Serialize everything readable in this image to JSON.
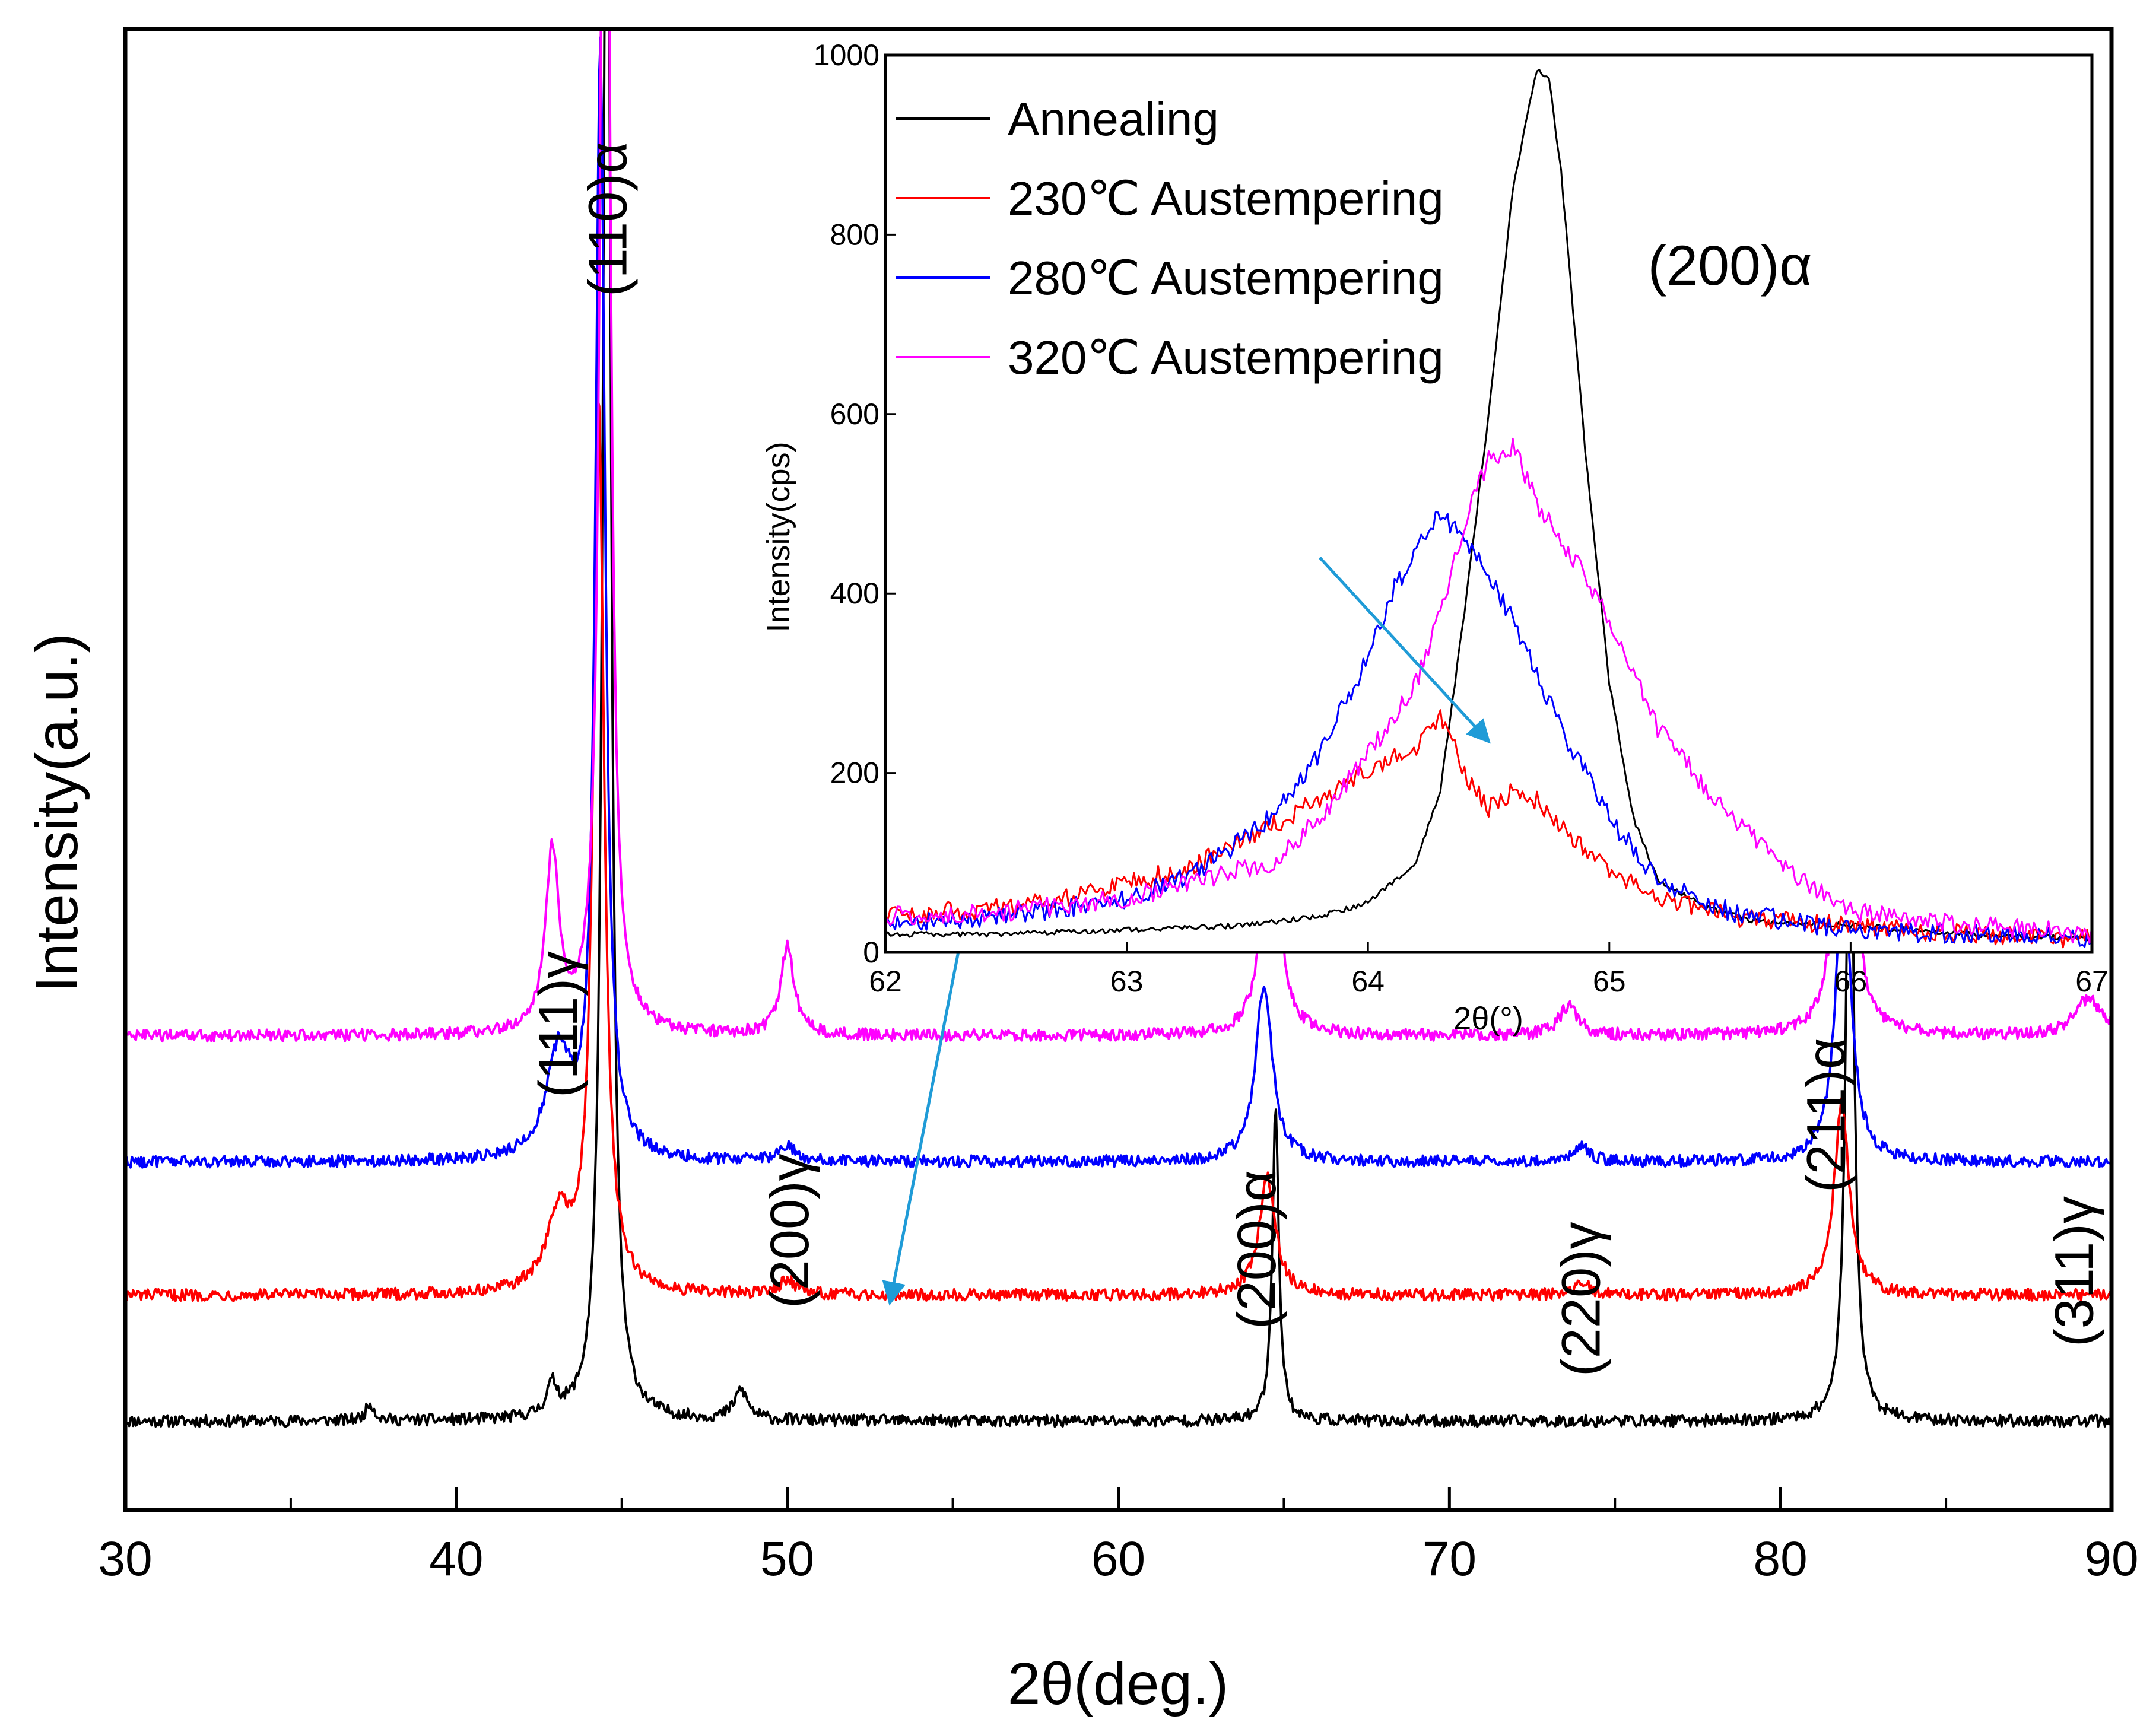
{
  "chart_data": [
    {
      "type": "line",
      "ylabel": "Intensity(a.u.)",
      "xlabel": "2θ(deg.)",
      "xlim": [
        30,
        90
      ],
      "x_ticks": [
        "30",
        "40",
        "50",
        "60",
        "70",
        "80",
        "90"
      ],
      "y_ticks_shown": false,
      "peak_labels": [
        {
          "text": "(110)α",
          "x": 44.6
        },
        {
          "text": "(111)γ",
          "x": 43.1
        },
        {
          "text": "(200)γ",
          "x": 50.1
        },
        {
          "text": "(200)α",
          "x": 64.2
        },
        {
          "text": "(220)γ",
          "x": 74.0
        },
        {
          "text": "(211)α",
          "x": 81.4
        },
        {
          "text": "(311)γ",
          "x": 88.9
        }
      ],
      "series": [
        {
          "name": "Annealing",
          "color": "#000000",
          "baseline": 0.06,
          "peaks": [
            [
              37.4,
              0.012,
              0.3
            ],
            [
              42.9,
              0.02,
              0.4
            ],
            [
              44.55,
              1.2,
              0.28
            ],
            [
              48.6,
              0.02,
              0.5
            ],
            [
              64.75,
              0.21,
              0.24
            ],
            [
              82.1,
              0.48,
              0.28
            ]
          ]
        },
        {
          "name": "230℃ Austempering",
          "color": "#ff0000",
          "baseline": 0.145,
          "peaks": [
            [
              43.1,
              0.05,
              0.9
            ],
            [
              44.3,
              0.6,
              0.4
            ],
            [
              50.0,
              0.01,
              0.6
            ],
            [
              64.5,
              0.08,
              0.6
            ],
            [
              74.0,
              0.008,
              0.6
            ],
            [
              81.85,
              0.13,
              0.55
            ]
          ]
        },
        {
          "name": "280℃ Austempering",
          "color": "#0000ff",
          "baseline": 0.235,
          "peaks": [
            [
              43.1,
              0.07,
              0.9
            ],
            [
              44.35,
              0.75,
              0.35
            ],
            [
              50.0,
              0.01,
              0.6
            ],
            [
              64.4,
              0.12,
              0.6
            ],
            [
              74.0,
              0.01,
              0.6
            ],
            [
              81.9,
              0.2,
              0.55
            ]
          ]
        },
        {
          "name": "320℃ Austempering",
          "color": "#ff00ff",
          "baseline": 0.32,
          "peaks": [
            [
              42.9,
              0.12,
              0.5
            ],
            [
              44.5,
              1.2,
              0.3
            ],
            [
              50.0,
              0.06,
              0.5
            ],
            [
              64.6,
              0.18,
              0.55
            ],
            [
              73.6,
              0.02,
              0.7
            ],
            [
              81.95,
              0.3,
              0.5
            ],
            [
              89.3,
              0.025,
              1.0
            ]
          ]
        }
      ],
      "annotations": [
        {
          "type": "arrow",
          "color": "#1f9bd7",
          "from": [
            57.2,
            0.61
          ],
          "to": [
            53.1,
            0.14
          ]
        }
      ]
    },
    {
      "type": "line",
      "title": "(200)α",
      "ylabel": "Intensity(cps)",
      "xlabel": "2θ(°)",
      "xlim": [
        62,
        67
      ],
      "ylim": [
        0,
        1000
      ],
      "x_ticks": [
        "62",
        "63",
        "64",
        "65",
        "66",
        "67"
      ],
      "y_ticks": [
        "0",
        "200",
        "400",
        "600",
        "800",
        "1000"
      ],
      "legend_position": "top-left",
      "series": [
        {
          "name": "Annealing",
          "color": "#000000",
          "x": [
            62,
            62.5,
            63,
            63.5,
            63.8,
            64,
            64.2,
            64.3,
            64.4,
            64.5,
            64.6,
            64.7,
            64.75,
            64.8,
            64.9,
            65,
            65.1,
            65.2,
            65.4,
            65.6,
            66,
            66.5,
            67
          ],
          "y": [
            20,
            20,
            25,
            30,
            40,
            55,
            100,
            180,
            380,
            600,
            850,
            985,
            975,
            870,
            560,
            300,
            150,
            80,
            50,
            35,
            30,
            20,
            15
          ]
        },
        {
          "name": "230℃ Austempering",
          "color": "#ff0000",
          "x": [
            62,
            62.5,
            63,
            63.3,
            63.6,
            63.8,
            64,
            64.2,
            64.3,
            64.4,
            64.5,
            64.6,
            64.7,
            64.8,
            65,
            65.2,
            65.5,
            66,
            66.5,
            67
          ],
          "y": [
            40,
            50,
            75,
            100,
            140,
            170,
            205,
            230,
            265,
            200,
            160,
            180,
            170,
            140,
            90,
            60,
            40,
            30,
            20,
            15
          ]
        },
        {
          "name": "280℃ Austempering",
          "color": "#0000ff",
          "x": [
            62,
            62.5,
            63,
            63.3,
            63.6,
            63.8,
            64,
            64.1,
            64.2,
            64.3,
            64.4,
            64.5,
            64.6,
            64.7,
            64.8,
            65,
            65.2,
            65.5,
            66,
            66.5,
            67
          ],
          "y": [
            30,
            40,
            60,
            90,
            150,
            220,
            330,
            400,
            450,
            490,
            460,
            420,
            370,
            310,
            250,
            150,
            80,
            45,
            25,
            20,
            15
          ]
        },
        {
          "name": "320℃ Austempering",
          "color": "#ff00ff",
          "x": [
            62,
            62.5,
            63,
            63.3,
            63.6,
            63.8,
            64,
            64.2,
            64.3,
            64.4,
            64.5,
            64.6,
            64.7,
            64.8,
            64.9,
            65,
            65.2,
            65.5,
            65.8,
            66,
            66.5,
            67
          ],
          "y": [
            40,
            45,
            60,
            80,
            100,
            150,
            220,
            300,
            380,
            480,
            550,
            565,
            500,
            460,
            420,
            370,
            250,
            150,
            80,
            45,
            30,
            20
          ]
        }
      ],
      "annotations": [
        {
          "type": "arrow",
          "color": "#1f9bd7",
          "from": [
            63.8,
            440
          ],
          "to": [
            64.5,
            235
          ]
        }
      ]
    }
  ]
}
